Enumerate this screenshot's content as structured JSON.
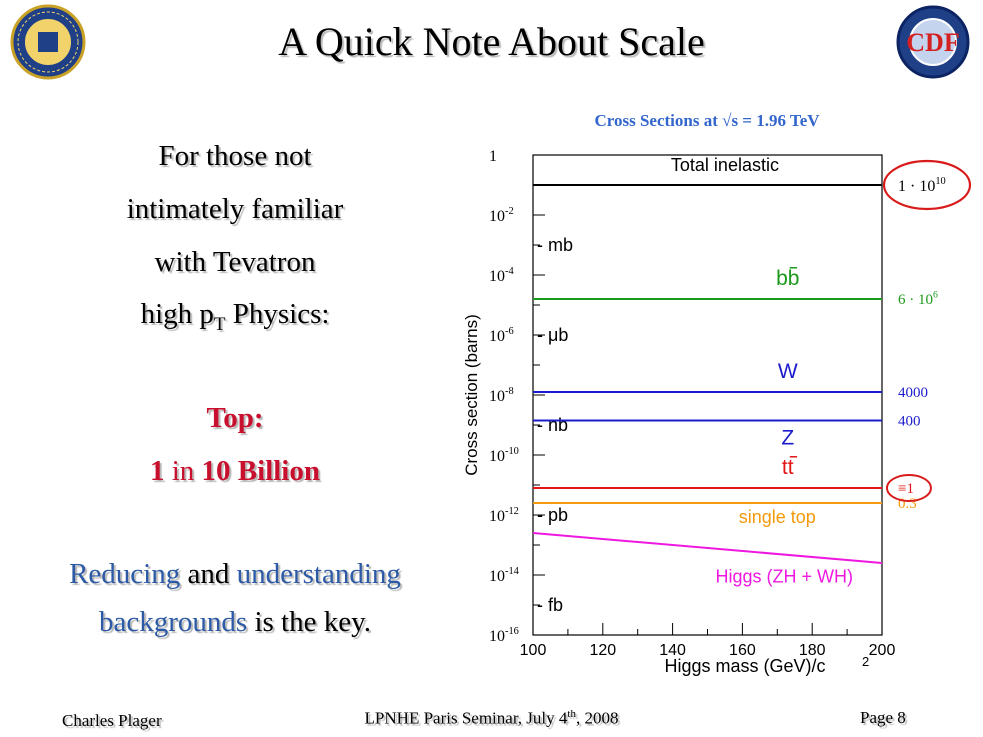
{
  "slide": {
    "title": "A Quick Note About Scale",
    "intro": [
      "For those not",
      "intimately familiar",
      "with  Tevatron"
    ],
    "highpt": {
      "pre": "high p",
      "sub": "T",
      "post": " Physics:"
    },
    "top_label": "Top:",
    "top_value": {
      "a": "1 ",
      "b": "in",
      "c": " 10 Billion"
    },
    "reducing": {
      "a": "Reducing",
      "b": " and ",
      "c": "understanding"
    },
    "backgrounds": {
      "a": "backgrounds",
      "b": " is the key."
    }
  },
  "footer": {
    "author": "Charles Plager",
    "event_pre": "LPNHE Paris Seminar, July 4",
    "event_sup": "th",
    "event_post": ", 2008",
    "page": "Page 8"
  },
  "logos": {
    "left": "university-seal",
    "right": "CDF"
  },
  "chart_data": {
    "type": "line",
    "title": "Cross Sections at √s  = 1.96 TeV",
    "xlabel": "Higgs mass (GeV)/c",
    "xlabel_sup": "2",
    "ylabel": "Cross section (barns)",
    "xlim": [
      100,
      200
    ],
    "ylim_log10": [
      -16,
      0
    ],
    "x_ticks": [
      "100",
      "120",
      "140",
      "160",
      "180",
      "200"
    ],
    "y_ticks": [
      {
        "base": "1",
        "exp": ""
      },
      {
        "base": "10",
        "exp": "-2"
      },
      {
        "base": "10",
        "exp": "-4"
      },
      {
        "base": "10",
        "exp": "-6"
      },
      {
        "base": "10",
        "exp": "-8"
      },
      {
        "base": "10",
        "exp": "-10"
      },
      {
        "base": "10",
        "exp": "-12"
      },
      {
        "base": "10",
        "exp": "-14"
      },
      {
        "base": "10",
        "exp": "-16"
      }
    ],
    "unit_marks": [
      {
        "label": "- mb",
        "log10": -3
      },
      {
        "label": "- μb",
        "log10": -6
      },
      {
        "label": "- nb",
        "log10": -9
      },
      {
        "label": "- pb",
        "log10": -12
      },
      {
        "label": "- fb",
        "log10": -15
      }
    ],
    "series": [
      {
        "name": "Total inelastic",
        "color": "#000000",
        "log10": [
          -1.0,
          -1.0
        ]
      },
      {
        "name": "bb",
        "color": "#1a9a1a",
        "log10": [
          -4.8,
          -4.8
        ],
        "rate": {
          "base": "6 · 10",
          "exp": "6"
        }
      },
      {
        "name": "W",
        "color": "#1c1ccc",
        "log10": [
          -7.9,
          -7.9
        ],
        "rate": {
          "base": "4000",
          "exp": ""
        }
      },
      {
        "name": "Z",
        "color": "#1c1ccc",
        "log10": [
          -8.85,
          -8.85
        ],
        "rate": {
          "base": "400",
          "exp": ""
        }
      },
      {
        "name": "tt",
        "color": "#e01515",
        "log10": [
          -11.1,
          -11.1
        ],
        "rate": {
          "base": "≡1",
          "exp": ""
        }
      },
      {
        "name": "single top",
        "color": "#f59a0c",
        "log10": [
          -11.6,
          -11.6
        ],
        "rate": {
          "base": "0.3",
          "exp": ""
        }
      },
      {
        "name": "Higgs (ZH + WH)",
        "color": "#ee18e0",
        "log10": [
          -12.6,
          -13.6
        ]
      }
    ],
    "total_rate": {
      "base": "1 · 10",
      "exp": "10"
    }
  }
}
